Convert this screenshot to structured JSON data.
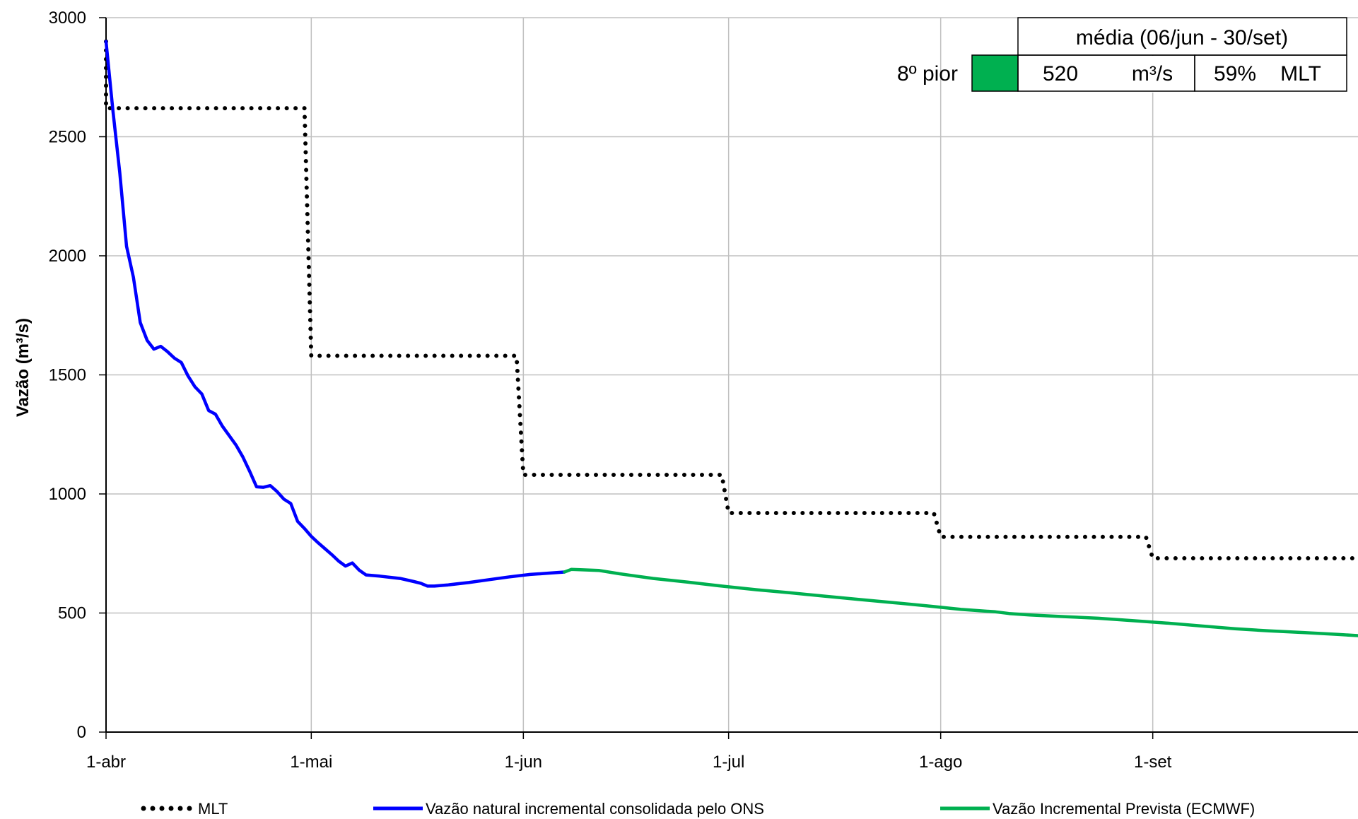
{
  "chart_data": {
    "type": "line",
    "ylabel": "Vazão (m³/s)",
    "ylim": [
      0,
      3000
    ],
    "yticks": [
      0,
      500,
      1000,
      1500,
      2000,
      2500,
      3000
    ],
    "x_range_days": [
      0,
      183
    ],
    "xticks": [
      {
        "day": 0,
        "label": "1-abr"
      },
      {
        "day": 30,
        "label": "1-mai"
      },
      {
        "day": 61,
        "label": "1-jun"
      },
      {
        "day": 91,
        "label": "1-jul"
      },
      {
        "day": 122,
        "label": "1-ago"
      },
      {
        "day": 153,
        "label": "1-set"
      }
    ],
    "grid": true,
    "legend_position": "bottom",
    "series": [
      {
        "name": "MLT",
        "style": "dotted",
        "color": "#000000",
        "points": [
          [
            0,
            2900
          ],
          [
            0,
            2620
          ],
          [
            29,
            2620
          ],
          [
            30,
            1580
          ],
          [
            60,
            1580
          ],
          [
            61,
            1080
          ],
          [
            90,
            1080
          ],
          [
            91,
            920
          ],
          [
            121,
            920
          ],
          [
            122,
            820
          ],
          [
            152,
            820
          ],
          [
            153,
            730
          ],
          [
            183,
            730
          ]
        ]
      },
      {
        "name": "Vazão natural incremental consolidada pelo ONS",
        "style": "solid",
        "color": "#0000ff",
        "points": [
          [
            0,
            2900
          ],
          [
            1,
            2610
          ],
          [
            2,
            2350
          ],
          [
            3,
            2040
          ],
          [
            4,
            1910
          ],
          [
            5,
            1720
          ],
          [
            6,
            1645
          ],
          [
            7,
            1608
          ],
          [
            8,
            1620
          ],
          [
            9,
            1597
          ],
          [
            10,
            1570
          ],
          [
            11,
            1552
          ],
          [
            12,
            1495
          ],
          [
            13,
            1450
          ],
          [
            14,
            1420
          ],
          [
            15,
            1350
          ],
          [
            16,
            1335
          ],
          [
            17,
            1285
          ],
          [
            18,
            1245
          ],
          [
            19,
            1205
          ],
          [
            20,
            1155
          ],
          [
            21,
            1095
          ],
          [
            22,
            1030
          ],
          [
            23,
            1028
          ],
          [
            24,
            1035
          ],
          [
            25,
            1010
          ],
          [
            26,
            978
          ],
          [
            27,
            960
          ],
          [
            28,
            885
          ],
          [
            29,
            855
          ],
          [
            30,
            822
          ],
          [
            31,
            795
          ],
          [
            32,
            770
          ],
          [
            33,
            745
          ],
          [
            34,
            718
          ],
          [
            35,
            697
          ],
          [
            36,
            710
          ],
          [
            37,
            680
          ],
          [
            38,
            660
          ],
          [
            40,
            655
          ],
          [
            43,
            645
          ],
          [
            45,
            632
          ],
          [
            46,
            625
          ],
          [
            47,
            613
          ],
          [
            48,
            613
          ],
          [
            50,
            618
          ],
          [
            53,
            628
          ],
          [
            56,
            640
          ],
          [
            59,
            652
          ],
          [
            62,
            662
          ],
          [
            65,
            668
          ],
          [
            67,
            672
          ]
        ]
      },
      {
        "name": "Vazão Incremental Prevista (ECMWF)",
        "style": "solid",
        "color": "#00b050",
        "points": [
          [
            67,
            672
          ],
          [
            68,
            683
          ],
          [
            70,
            681
          ],
          [
            72,
            679
          ],
          [
            75,
            665
          ],
          [
            80,
            645
          ],
          [
            85,
            630
          ],
          [
            90,
            613
          ],
          [
            95,
            598
          ],
          [
            100,
            585
          ],
          [
            105,
            571
          ],
          [
            110,
            557
          ],
          [
            115,
            544
          ],
          [
            120,
            530
          ],
          [
            125,
            515
          ],
          [
            130,
            505
          ],
          [
            132,
            498
          ],
          [
            135,
            492
          ],
          [
            140,
            485
          ],
          [
            145,
            478
          ],
          [
            150,
            468
          ],
          [
            155,
            458
          ],
          [
            160,
            446
          ],
          [
            165,
            434
          ],
          [
            170,
            425
          ],
          [
            175,
            418
          ],
          [
            180,
            410
          ],
          [
            183,
            405
          ]
        ]
      }
    ]
  },
  "stats_table": {
    "header": "média (06/jun - 30/set)",
    "row_label": "8º pior",
    "indicator_color": "#00b050",
    "value": "520",
    "unit": "m³/s",
    "percent": "59%",
    "reference": "MLT"
  }
}
